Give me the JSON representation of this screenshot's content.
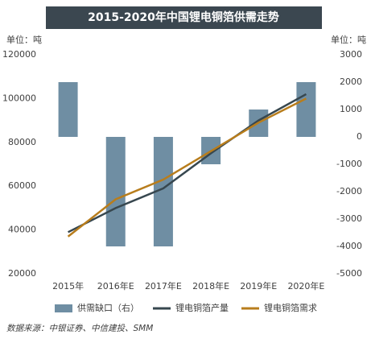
{
  "chart_data": {
    "type": "combo",
    "title": "2015-2020年中国锂电铜箔供需走势",
    "y_label": "单位：吨",
    "y2_label": "单位：吨",
    "categories": [
      "2015年",
      "2016年E",
      "2017年E",
      "2018年E",
      "2019年E",
      "2020年E"
    ],
    "series": [
      {
        "name": "供需缺口（右）",
        "type": "bar",
        "axis": "y2",
        "color": "#6f8ea3",
        "values": [
          2000,
          -4000,
          -4000,
          -1000,
          1000,
          2000
        ]
      },
      {
        "name": "锂电铜箔产量",
        "type": "line",
        "color": "#37474f",
        "values": [
          39000,
          50000,
          59000,
          75000,
          90000,
          102000
        ]
      },
      {
        "name": "锂电铜箔需求",
        "type": "line",
        "color": "#b87d1c",
        "values": [
          37000,
          54000,
          63000,
          76000,
          89000,
          100000
        ]
      }
    ],
    "ylim": [
      20000,
      120000
    ],
    "yticks": [
      20000,
      40000,
      60000,
      80000,
      100000,
      120000
    ],
    "y2lim": [
      -5000,
      3000
    ],
    "y2ticks": [
      -5000,
      -4000,
      -3000,
      -2000,
      -1000,
      0,
      1000,
      2000,
      3000
    ],
    "source": "数据来源：中银证券、中信建投、SMM"
  }
}
